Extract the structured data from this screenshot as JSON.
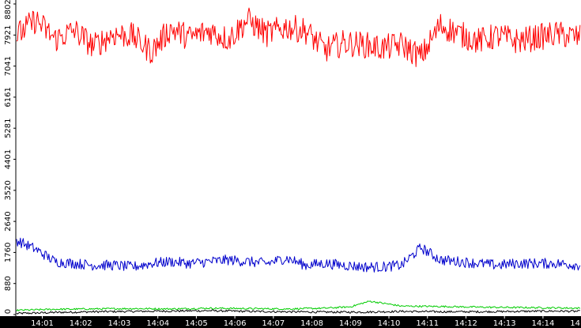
{
  "chart_data": {
    "type": "line",
    "title": "",
    "xlabel": "",
    "ylabel": "",
    "y_tick_labels": [
      "0",
      "880",
      "1760",
      "2640",
      "3520",
      "4401",
      "5281",
      "6161",
      "7041",
      "7921",
      "8802"
    ],
    "y_tick_values": [
      0,
      880,
      1760,
      2640,
      3520,
      4401,
      5281,
      6161,
      7041,
      7921,
      8802
    ],
    "ylim": [
      0,
      8802
    ],
    "x_tick_labels": [
      "14:01",
      "14:02",
      "14:03",
      "14:04",
      "14:05",
      "14:06",
      "14:07",
      "14:08",
      "14:09",
      "14:10",
      "14:11",
      "14:12",
      "14:13",
      "14:14",
      "14"
    ],
    "xlim": [
      "14:00:20",
      "14:14:58"
    ],
    "grid": false,
    "colors": {
      "background": "#ffffff",
      "x_axis_band": "#000000",
      "x_tick_text": "#ffffff",
      "y_tick_text": "#000000",
      "axis_line": "#000000"
    },
    "series": [
      {
        "color": "#ff0000",
        "x": [
          "14:00:20",
          "14:00:50",
          "14:01:20",
          "14:01:50",
          "14:02:20",
          "14:02:50",
          "14:03:20",
          "14:03:50",
          "14:04:20",
          "14:04:50",
          "14:05:20",
          "14:05:50",
          "14:06:20",
          "14:06:50",
          "14:07:20",
          "14:07:50",
          "14:08:20",
          "14:08:50",
          "14:09:20",
          "14:09:50",
          "14:10:20",
          "14:10:50",
          "14:11:20",
          "14:11:50",
          "14:12:20",
          "14:12:50",
          "14:13:20",
          "14:13:50",
          "14:14:20",
          "14:14:58"
        ],
        "values": [
          7900,
          8350,
          7800,
          8050,
          7600,
          7950,
          7900,
          7450,
          8100,
          7850,
          8050,
          7800,
          8350,
          7950,
          8150,
          8050,
          7500,
          7700,
          7650,
          7550,
          7650,
          7300,
          8200,
          7950,
          7750,
          7900,
          7750,
          7850,
          7950,
          7850
        ]
      },
      {
        "color": "#0000cc",
        "x": [
          "14:00:20",
          "14:00:50",
          "14:01:20",
          "14:01:50",
          "14:02:20",
          "14:02:50",
          "14:03:20",
          "14:03:50",
          "14:04:20",
          "14:04:50",
          "14:05:20",
          "14:05:50",
          "14:06:20",
          "14:06:50",
          "14:07:20",
          "14:07:50",
          "14:08:20",
          "14:08:50",
          "14:09:20",
          "14:09:50",
          "14:10:20",
          "14:10:50",
          "14:11:20",
          "14:11:50",
          "14:12:20",
          "14:12:50",
          "14:13:20",
          "14:13:50",
          "14:14:20",
          "14:14:58"
        ],
        "values": [
          2100,
          1850,
          1500,
          1450,
          1400,
          1400,
          1350,
          1450,
          1500,
          1450,
          1500,
          1550,
          1500,
          1450,
          1600,
          1400,
          1450,
          1400,
          1350,
          1350,
          1400,
          1900,
          1550,
          1500,
          1450,
          1400,
          1450,
          1450,
          1450,
          1400
        ]
      },
      {
        "color": "#00cc00",
        "x": [
          "14:00:20",
          "14:01:20",
          "14:02:20",
          "14:03:20",
          "14:04:20",
          "14:05:20",
          "14:06:20",
          "14:07:20",
          "14:08:20",
          "14:09:00",
          "14:09:30",
          "14:10:20",
          "14:11:20",
          "14:12:20",
          "14:13:20",
          "14:14:20",
          "14:14:58"
        ],
        "values": [
          120,
          150,
          160,
          170,
          160,
          180,
          170,
          160,
          180,
          220,
          380,
          240,
          230,
          210,
          200,
          190,
          180
        ]
      },
      {
        "color": "#000000",
        "x": [
          "14:00:20",
          "14:01:20",
          "14:02:20",
          "14:03:20",
          "14:04:20",
          "14:05:20",
          "14:06:20",
          "14:07:20",
          "14:08:20",
          "14:09:20",
          "14:10:20",
          "14:11:20",
          "14:12:20",
          "14:13:20",
          "14:14:20",
          "14:14:58"
        ],
        "values": [
          30,
          60,
          80,
          90,
          100,
          110,
          90,
          80,
          70,
          70,
          90,
          80,
          80,
          90,
          100,
          90
        ]
      }
    ]
  }
}
